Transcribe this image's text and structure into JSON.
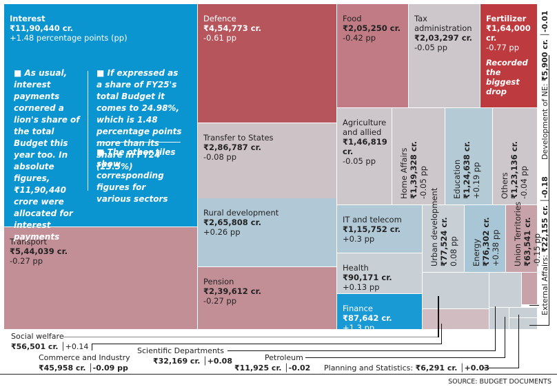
{
  "chart_data": {
    "type": "treemap",
    "title": "",
    "source": "SOURCE: BUDGET DOCUMENTS",
    "unit_value": "₹ crore",
    "unit_change": "percentage points (pp)",
    "items": [
      {
        "name": "Interest",
        "value_label": "₹11,90,440 cr.",
        "value": 1190440,
        "change_label": "+1.48 percentage points (pp)",
        "change": 1.48,
        "color": "#0a95d0"
      },
      {
        "name": "Transport",
        "value_label": "₹5,44,039 cr.",
        "value": 544039,
        "change_label": "-0.27 pp",
        "change": -0.27,
        "color": "#c38f97"
      },
      {
        "name": "Defence",
        "value_label": "₹4,54,773 cr.",
        "value": 454773,
        "change_label": "-0.61 pp",
        "change": -0.61,
        "color": "#b7555d"
      },
      {
        "name": "Transfer to States",
        "value_label": "₹2,86,787 cr.",
        "value": 286787,
        "change_label": "-0.08 pp",
        "change": -0.08,
        "color": "#cdc2c6"
      },
      {
        "name": "Rural development",
        "value_label": "₹2,65,808 cr.",
        "value": 265808,
        "change_label": "+0.26 pp",
        "change": 0.26,
        "color": "#b1c9d6"
      },
      {
        "name": "Pension",
        "value_label": "₹2,39,612 cr.",
        "value": 239612,
        "change_label": "-0.27 pp",
        "change": -0.27,
        "color": "#c38f97"
      },
      {
        "name": "Food",
        "value_label": "₹2,05,250 cr.",
        "value": 205250,
        "change_label": "-0.42 pp",
        "change": -0.42,
        "color": "#c07b85"
      },
      {
        "name": "Tax administration",
        "value_label": "₹2,03,297 cr.",
        "value": 203297,
        "change_label": "-0.05 pp",
        "change": -0.05,
        "color": "#cdc6ca"
      },
      {
        "name": "Fertilizer",
        "value_label": "₹1,64,000 cr.",
        "value": 164000,
        "change_label": "-0.77 pp",
        "change": -0.77,
        "note": "Recorded the biggest drop",
        "color": "#bd3a3f"
      },
      {
        "name": "Agriculture and allied",
        "value_label": "₹1,46,819 cr.",
        "value": 146819,
        "change_label": "-0.05 pp",
        "change": -0.05,
        "color": "#cdc6ca"
      },
      {
        "name": "Home Affairs",
        "value_label": "₹1,39,328 cr.",
        "value": 139328,
        "change_label": "-0.05 pp",
        "change": -0.05,
        "color": "#cdc6ca"
      },
      {
        "name": "Education",
        "value_label": "₹1,24,638 cr.",
        "value": 124638,
        "change_label": "+0.19 pp",
        "change": 0.19,
        "color": "#b4cad5"
      },
      {
        "name": "Others",
        "value_label": "₹1,23,136 cr.",
        "value": 123136,
        "change_label": "-0.04 pp",
        "change": -0.04,
        "color": "#cdc6ca"
      },
      {
        "name": "IT and telecom",
        "value_label": "₹1,15,752 cr.",
        "value": 115752,
        "change_label": "+0.3 pp",
        "change": 0.3,
        "color": "#b1c9d6"
      },
      {
        "name": "Health",
        "value_label": "₹90,171 cr.",
        "value": 90171,
        "change_label": "+0.13 pp",
        "change": 0.13,
        "color": "#c8d0d6"
      },
      {
        "name": "Finance",
        "value_label": "₹87,642 cr.",
        "value": 87642,
        "change_label": "+1.3 pp",
        "change": 1.3,
        "color": "#1a9ad4"
      },
      {
        "name": "Urban development",
        "value_label": "₹77,524 cr.",
        "value": 77524,
        "change_label": "0.08 pp",
        "change": 0.08,
        "color": "#c8d0d6"
      },
      {
        "name": "Energy",
        "value_label": "₹76,302 cr.",
        "value": 76302,
        "change_label": "+0.38 pp",
        "change": 0.38,
        "color": "#a9c6d6"
      },
      {
        "name": "Union Territories",
        "value_label": "₹63,541 cr.",
        "value": 63541,
        "change_label": "-0.15 pp",
        "change": -0.15,
        "color": "#c8a2a9"
      },
      {
        "name": "Social welfare",
        "value_label": "₹56,501 cr.",
        "value": 56501,
        "change_label": "+0.14",
        "change": 0.14,
        "color": "#c8d0d6"
      },
      {
        "name": "Commerce and Industry",
        "value_label": "₹45,958 cr.",
        "value": 45958,
        "change_label": "-0.09 pp",
        "change": -0.09,
        "color": "#d0bcc1"
      },
      {
        "name": "Scientific Departments",
        "value_label": "₹32,169 cr.",
        "value": 32169,
        "change_label": "+0.08",
        "change": 0.08,
        "color": "#c8d0d6"
      },
      {
        "name": "External Affairs",
        "value_label": "₹22,155 cr.",
        "value": 22155,
        "change_label": "-0.18",
        "change": -0.18,
        "color": "#c8a2a9"
      },
      {
        "name": "Petroleum",
        "value_label": "₹11,925 cr.",
        "value": 11925,
        "change_label": "-0.02",
        "change": -0.02,
        "color": "#c8d0d6"
      },
      {
        "name": "Planning and Statistics",
        "value_label": "₹6,291 cr.",
        "value": 6291,
        "change_label": "+0.03",
        "change": 0.03,
        "color": "#c8d0d6"
      },
      {
        "name": "Development of NE",
        "value_label": "₹5,900 cr.",
        "value": 5900,
        "change_label": "-0.01",
        "change": -0.01,
        "color": "#c8d0d6"
      }
    ],
    "notes": {
      "left": "As usual, interest payments cornered a lion's share of the total Budget this year too. In absolute figures, ₹11,90,440 crore were allocated for interest payments",
      "right": "If expressed as a share of FY25's total Budget it comes to 24.98%, which is 1.48 percentage points more than its share in FY24 (23.5%)",
      "right2": "The other tiles show corresponding figures for various sectors"
    }
  },
  "callouts": {
    "social_welfare": {
      "name": "Social welfare",
      "value": "₹56,501 cr.",
      "change": "+0.14"
    },
    "commerce": {
      "name": "Commerce and Industry",
      "value": "₹45,958 cr.",
      "change": "-0.09 pp"
    },
    "scientific": {
      "name": "Scientific Departments",
      "value": "₹32,169 cr.",
      "change": "+0.08"
    },
    "petroleum": {
      "name": "Petroleum",
      "value": "₹11,925 cr.",
      "change": "-0.02"
    },
    "planning": {
      "label": "Planning and Statistics: ",
      "value": "₹6,291 cr.",
      "change": "+0.03"
    },
    "external": {
      "label": "External Affairs: ",
      "value": "₹22,155 cr.",
      "change": "-0.18"
    },
    "ne": {
      "label": "Development of NE: ",
      "value": "₹5,900 cr.",
      "change": "-0.01"
    }
  }
}
